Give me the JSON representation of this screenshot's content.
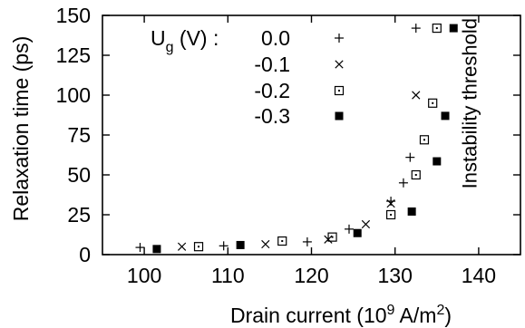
{
  "chart_data": {
    "type": "scatter",
    "xlabel": {
      "text": "Drain current (10",
      "sup1": "9",
      "mid": " A/m",
      "sup2": "2",
      "end": ")"
    },
    "ylabel": "Relaxation time (ps)",
    "xlim": [
      95,
      145
    ],
    "ylim": [
      0,
      150
    ],
    "xticks": [
      100,
      110,
      120,
      130,
      140
    ],
    "yticks": [
      0,
      25,
      50,
      75,
      100,
      125,
      150
    ],
    "grid": false,
    "legend": {
      "placement": "top-left",
      "title_main": "U",
      "title_sub": "g",
      "title_rest": " (V) :"
    },
    "annotation": "Instability threshold",
    "threshold_x": 138,
    "series": [
      {
        "name": "0.0",
        "marker": "plus",
        "points": [
          [
            99.5,
            4.5
          ],
          [
            109.5,
            5.5
          ],
          [
            119.5,
            8
          ],
          [
            124.5,
            16
          ],
          [
            129.5,
            33.5
          ],
          [
            131,
            45
          ],
          [
            131.8,
            61
          ],
          [
            132.5,
            142
          ]
        ]
      },
      {
        "name": "-0.1",
        "marker": "cross",
        "points": [
          [
            104.5,
            5
          ],
          [
            114.5,
            6.5
          ],
          [
            122,
            9.5
          ],
          [
            126.5,
            19
          ],
          [
            129.5,
            32
          ],
          [
            132.5,
            100
          ]
        ]
      },
      {
        "name": "-0.2",
        "marker": "box",
        "points": [
          [
            106.5,
            5
          ],
          [
            116.5,
            8.5
          ],
          [
            122.5,
            11
          ],
          [
            129.5,
            25
          ],
          [
            132.5,
            50
          ],
          [
            133.5,
            72
          ],
          [
            134.5,
            95
          ],
          [
            135,
            142
          ]
        ]
      },
      {
        "name": "-0.3",
        "marker": "filled-box",
        "points": [
          [
            101.5,
            3.5
          ],
          [
            111.5,
            6
          ],
          [
            125.5,
            13.5
          ],
          [
            132,
            27
          ],
          [
            135,
            58.5
          ],
          [
            136,
            87
          ],
          [
            137,
            142
          ]
        ]
      }
    ]
  }
}
